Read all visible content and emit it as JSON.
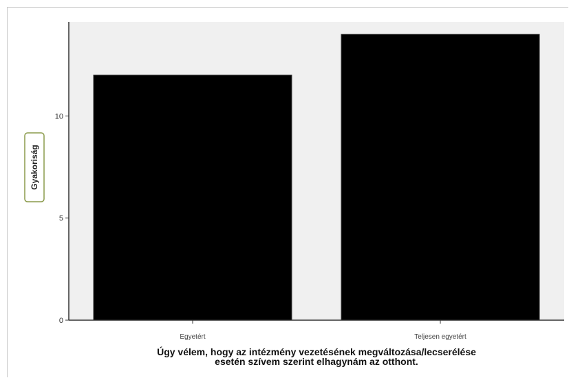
{
  "chart_data": {
    "type": "bar",
    "categories": [
      "Egyetért",
      "Teljesen egyetért"
    ],
    "values": [
      12,
      14
    ],
    "title": "",
    "ylabel": "Gyakoriság",
    "xlabel_lines": [
      "Úgy vélem, hogy az intézmény vezetésének megváltozása/lecserélése",
      "esetén szívem szerint elhagynám az otthont."
    ],
    "yticks": [
      0,
      5,
      10
    ],
    "ylim": [
      0,
      14.6
    ],
    "grid": false,
    "bar_color": "#000000",
    "plot_background": "#f0f0f0"
  }
}
